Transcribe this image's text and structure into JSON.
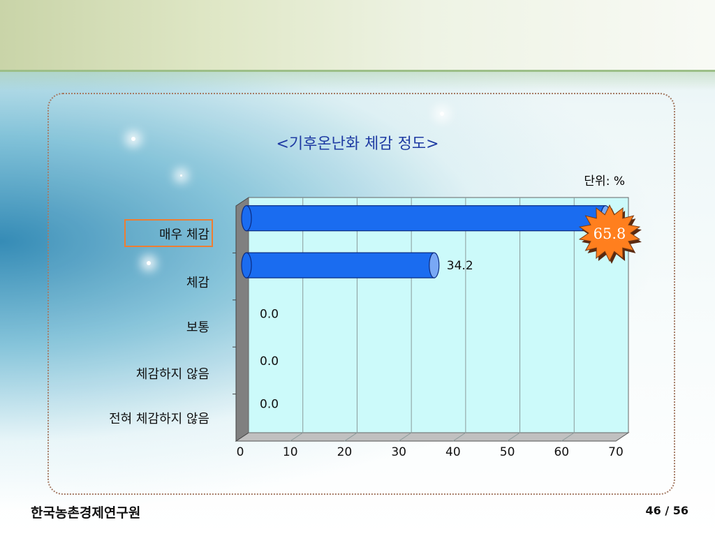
{
  "slide": {
    "title": "<기후온난화 체감 정도>",
    "unit": "단위: %",
    "organization": "한국농촌경제연구원",
    "page": "46 / 56"
  },
  "chart_data": {
    "type": "bar",
    "orientation": "horizontal",
    "title": "<기후온난화 체감 정도>",
    "categories": [
      "매우 체감",
      "체감",
      "보통",
      "체감하지 않음",
      "전혀 체감하지 않음"
    ],
    "values": [
      65.8,
      34.2,
      0.0,
      0.0,
      0.0
    ],
    "value_labels": [
      "65.8",
      "34.2",
      "0.0",
      "0.0",
      "0.0"
    ],
    "xlim": [
      0,
      70
    ],
    "xticks": [
      "0",
      "10",
      "20",
      "30",
      "40",
      "50",
      "60",
      "70"
    ],
    "grid": true,
    "highlight_category": "매우 체감",
    "colors": {
      "bar": "#1a6cf0",
      "bar_cap": "#79a8f5",
      "plot_bg": "#ccfafa",
      "burst": "#ff7f1e",
      "burst_text": "#ffffff",
      "highlight": "#ef7d31"
    }
  }
}
